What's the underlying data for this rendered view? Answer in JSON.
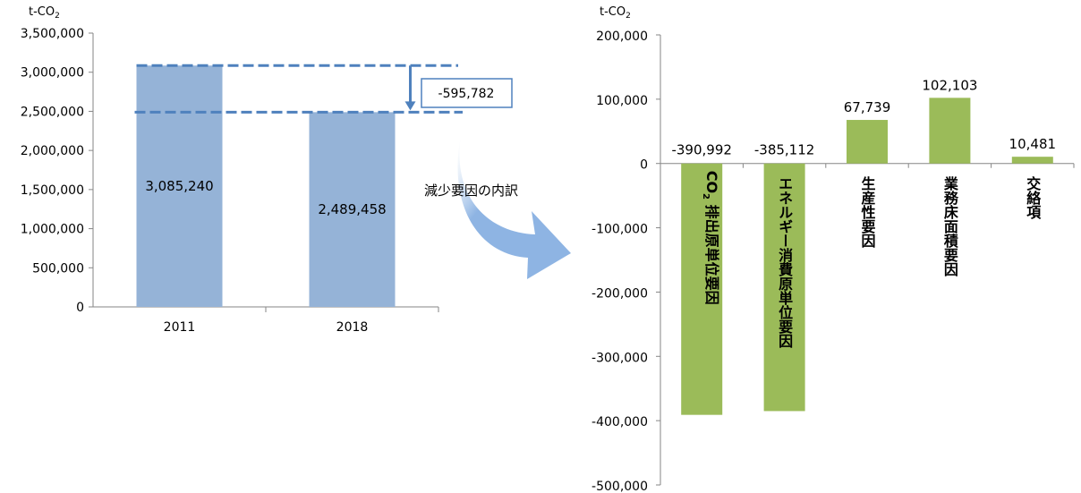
{
  "chart_data": [
    {
      "type": "bar",
      "unit_label": "t-CO",
      "unit_sub": "2",
      "categories": [
        "2011",
        "2018"
      ],
      "values": [
        3085240,
        2489458
      ],
      "value_labels": [
        "3,085,240",
        "2,489,458"
      ],
      "ylim": [
        0,
        3500000
      ],
      "yticks": [
        0,
        500000,
        1000000,
        1500000,
        2000000,
        2500000,
        3000000,
        3500000
      ],
      "ytick_labels": [
        "0",
        "500,000",
        "1,000,000",
        "1,500,000",
        "2,000,000",
        "2,500,000",
        "3,000,000",
        "3,500,000"
      ],
      "difference_label": "-595,782",
      "bar_color": "#95b3d7",
      "annotation_color": "#4f81bd"
    },
    {
      "type": "bar",
      "unit_label": "t-CO",
      "unit_sub": "2",
      "categories": [
        {
          "lines": [
            "CO",
            "排出原単位要因"
          ],
          "sub": "2",
          "sub_after_line": 0
        },
        {
          "lines": [
            "エネルギー消費原単位要因"
          ]
        },
        {
          "lines": [
            "生産性要因"
          ]
        },
        {
          "lines": [
            "業務床面積要因"
          ]
        },
        {
          "lines": [
            "交絡項"
          ]
        }
      ],
      "values": [
        -390992,
        -385112,
        67739,
        102103,
        10481
      ],
      "value_labels": [
        "-390,992",
        "-385,112",
        "67,739",
        "102,103",
        "10,481"
      ],
      "ylim": [
        -500000,
        200000
      ],
      "yticks": [
        -500000,
        -400000,
        -300000,
        -200000,
        -100000,
        0,
        100000,
        200000
      ],
      "ytick_labels": [
        "-500,000",
        "-400,000",
        "-300,000",
        "-200,000",
        "-100,000",
        "0",
        "100,000",
        "200,000"
      ],
      "bar_color": "#9bbb59"
    }
  ],
  "breakdown_label": "減少要因の内訳",
  "arrow_color": "#8eb4e3"
}
